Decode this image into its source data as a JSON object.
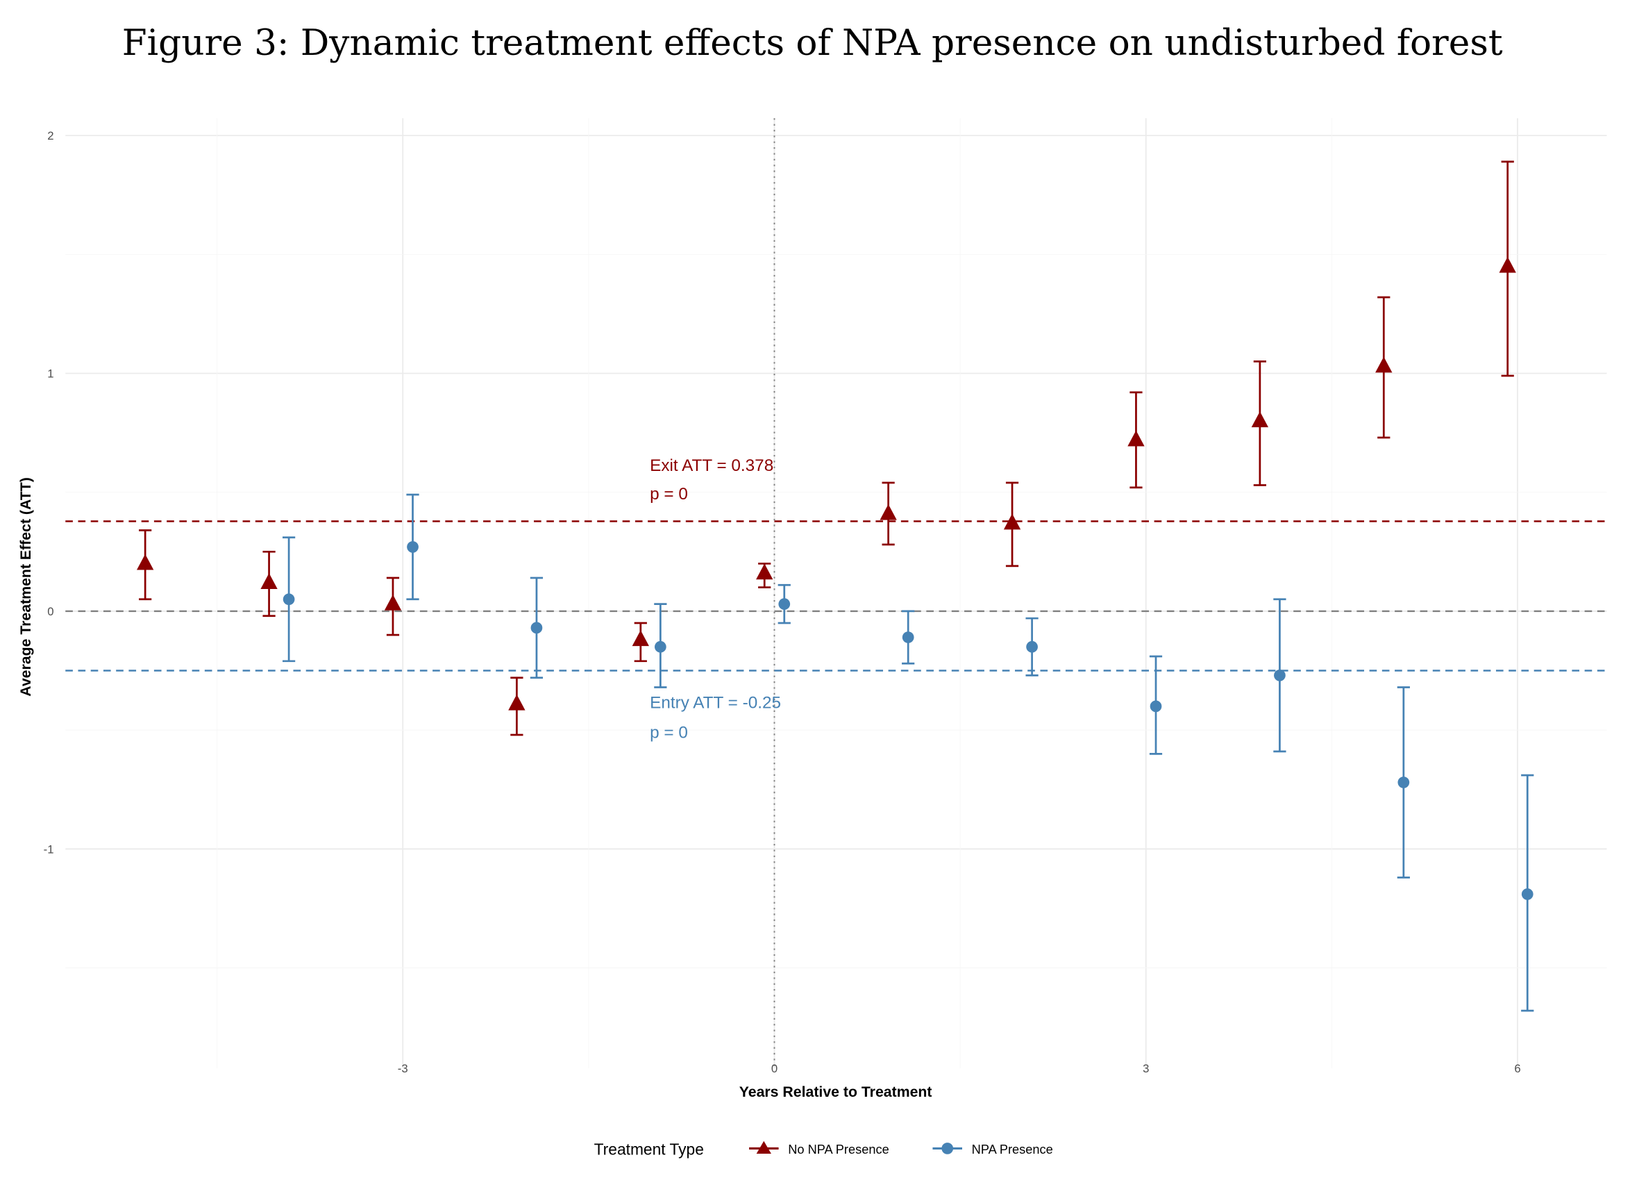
{
  "chart_data": {
    "type": "scatter",
    "title": "Figure 3: Dynamic treatment effects of NPA presence on undisturbed forest",
    "xlabel": "Years Relative to Treatment",
    "ylabel": "Average Treatment Effect (ATT)",
    "xlim": [
      -6.2,
      6.8
    ],
    "ylim": [
      -1.9,
      2.05
    ],
    "x_ticks": [
      -3,
      0,
      3,
      6
    ],
    "x_tick_labels": [
      "-3",
      "0",
      "3",
      "6"
    ],
    "y_ticks": [
      -1,
      0,
      1,
      2
    ],
    "y_tick_labels": [
      "-1",
      "0",
      "1",
      "2"
    ],
    "grid": true,
    "legend": {
      "title": "Treatment Type",
      "placement": "bottom"
    },
    "reference_lines": {
      "zero": 0,
      "vertical_x": 0
    },
    "series": [
      {
        "name": "No NPA Presence",
        "color": "#8B0000",
        "marker": "triangle",
        "x": [
          -5,
          -4,
          -3,
          -2,
          -1,
          0,
          1,
          2,
          3,
          4,
          5,
          6
        ],
        "y": [
          0.2,
          0.12,
          0.03,
          -0.39,
          -0.12,
          0.16,
          0.41,
          0.37,
          0.72,
          0.8,
          1.03,
          1.45
        ],
        "ci_upper": [
          0.34,
          0.25,
          0.14,
          -0.28,
          -0.05,
          0.2,
          0.54,
          0.54,
          0.92,
          1.05,
          1.32,
          1.89
        ],
        "ci_lower": [
          0.05,
          -0.02,
          -0.1,
          -0.52,
          -0.21,
          0.1,
          0.28,
          0.19,
          0.52,
          0.53,
          0.73,
          0.99
        ],
        "att_line": 0.378,
        "annotation": [
          "Exit ATT = 0.378",
          "p = 0"
        ]
      },
      {
        "name": "NPA Presence",
        "color": "#4682B4",
        "marker": "circle",
        "x": [
          -4,
          -3,
          -2,
          -1,
          0,
          1,
          2,
          3,
          4,
          5,
          6
        ],
        "y": [
          0.05,
          0.27,
          -0.07,
          -0.15,
          0.03,
          -0.11,
          -0.15,
          -0.4,
          -0.27,
          -0.72,
          -1.19
        ],
        "ci_upper": [
          0.31,
          0.49,
          0.14,
          0.03,
          0.11,
          0.0,
          -0.03,
          -0.19,
          0.05,
          -0.32,
          -0.69
        ],
        "ci_lower": [
          -0.21,
          0.05,
          -0.28,
          -0.32,
          -0.05,
          -0.22,
          -0.27,
          -0.6,
          -0.59,
          -1.12,
          -1.68
        ],
        "att_line": -0.25,
        "annotation": [
          "Entry ATT = -0.25",
          "p = 0"
        ]
      }
    ]
  }
}
